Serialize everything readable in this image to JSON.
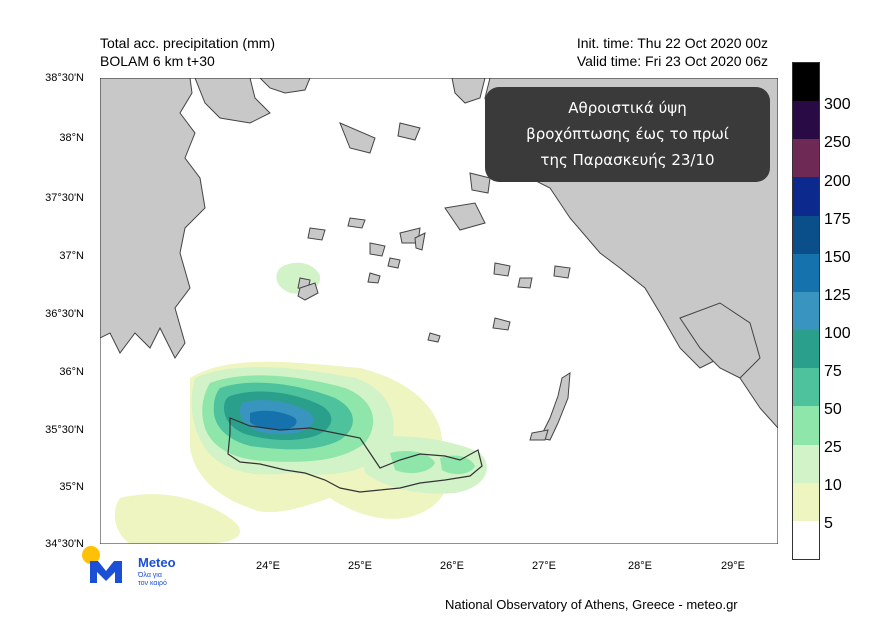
{
  "header": {
    "title": "Total acc. precipitation (mm)",
    "model": "BOLAM 6 km t+30",
    "init_time": "Init. time: Thu 22 Oct 2020 00z",
    "valid_time": "Valid time: Fri 23 Oct 2020 06z"
  },
  "note": {
    "line1": "Αθροιστικά ύψη",
    "line2": "βροχόπτωσης έως το πρωί",
    "line3": "της Παρασκευής 23/10"
  },
  "lat_labels": [
    "38°30'N",
    "38°N",
    "37°30'N",
    "37°N",
    "36°30'N",
    "36°N",
    "35°30'N",
    "35°N",
    "34°30'N"
  ],
  "lon_labels": [
    "24°E",
    "25°E",
    "26°E",
    "27°E",
    "28°E",
    "29°E"
  ],
  "colorbar": {
    "labels": [
      "300",
      "250",
      "200",
      "175",
      "150",
      "125",
      "100",
      "75",
      "50",
      "25",
      "10",
      "5"
    ],
    "colors": [
      "#000000",
      "#2a0a44",
      "#6e2a55",
      "#0c2a8e",
      "#0a4e8a",
      "#1672ac",
      "#3a94c0",
      "#2aa08c",
      "#4ec29c",
      "#8ee6aa",
      "#d2f2c8",
      "#eef5c0",
      "#ffffff"
    ]
  },
  "logo": {
    "name": "Meteo",
    "tagline1": "Όλα για",
    "tagline2": "τον καιρό"
  },
  "footer": "National Observatory of Athens, Greece - meteo.gr"
}
